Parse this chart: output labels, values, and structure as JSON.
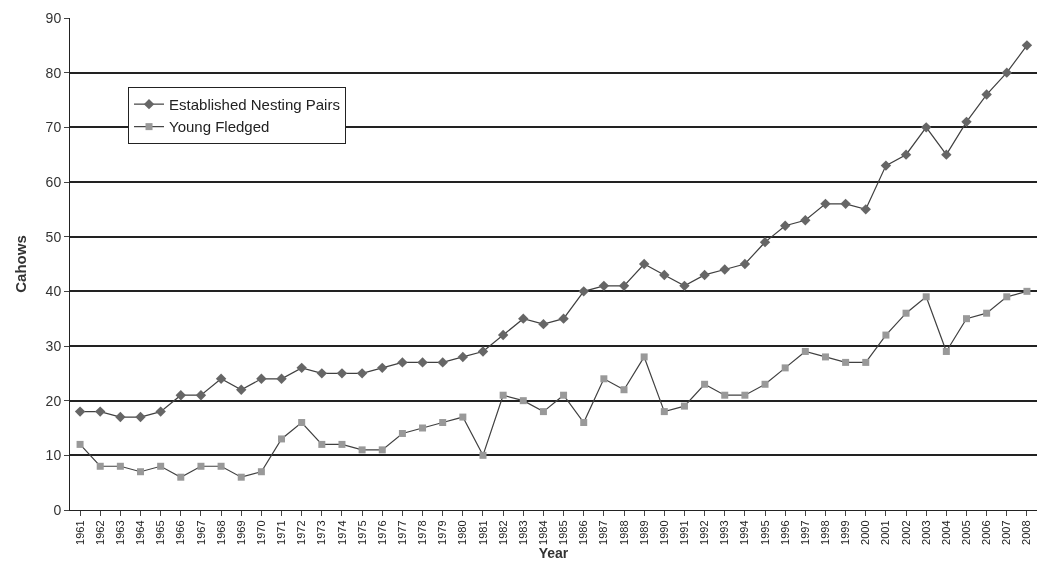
{
  "chart_data": {
    "type": "line",
    "xlabel": "Year",
    "ylabel": "Cahows",
    "categories": [
      "1961",
      "1962",
      "1963",
      "1964",
      "1965",
      "1966",
      "1967",
      "1968",
      "1969",
      "1970",
      "1971",
      "1972",
      "1973",
      "1974",
      "1975",
      "1976",
      "1977",
      "1978",
      "1979",
      "1980",
      "1981",
      "1982",
      "1983",
      "1984",
      "1985",
      "1986",
      "1987",
      "1988",
      "1989",
      "1990",
      "1991",
      "1992",
      "1993",
      "1994",
      "1995",
      "1996",
      "1997",
      "1998",
      "1999",
      "2000",
      "2001",
      "2002",
      "2003",
      "2004",
      "2005",
      "2006",
      "2007",
      "2008"
    ],
    "series": [
      {
        "name": "Established Nesting Pairs",
        "color": "#666666",
        "marker": "diamond",
        "values": [
          18,
          18,
          17,
          17,
          18,
          21,
          21,
          24,
          22,
          24,
          24,
          26,
          25,
          25,
          25,
          26,
          27,
          27,
          27,
          28,
          29,
          32,
          35,
          34,
          35,
          40,
          41,
          41,
          45,
          43,
          41,
          43,
          44,
          45,
          49,
          52,
          53,
          56,
          56,
          55,
          63,
          65,
          70,
          65,
          71,
          76,
          80,
          85
        ]
      },
      {
        "name": "Young Fledged",
        "color": "#999999",
        "marker": "square",
        "values": [
          12,
          8,
          8,
          7,
          8,
          6,
          8,
          8,
          6,
          7,
          13,
          16,
          12,
          12,
          11,
          11,
          14,
          15,
          16,
          17,
          10,
          21,
          20,
          18,
          21,
          16,
          24,
          22,
          28,
          18,
          19,
          23,
          21,
          21,
          23,
          26,
          29,
          28,
          27,
          27,
          32,
          36,
          39,
          29,
          35,
          36,
          39,
          40
        ]
      }
    ],
    "ylim": [
      0,
      90
    ],
    "yticks": [
      0,
      10,
      20,
      30,
      40,
      50,
      60,
      70,
      80,
      90
    ],
    "grid": "y",
    "legend": "top left",
    "line_style": "solid"
  }
}
